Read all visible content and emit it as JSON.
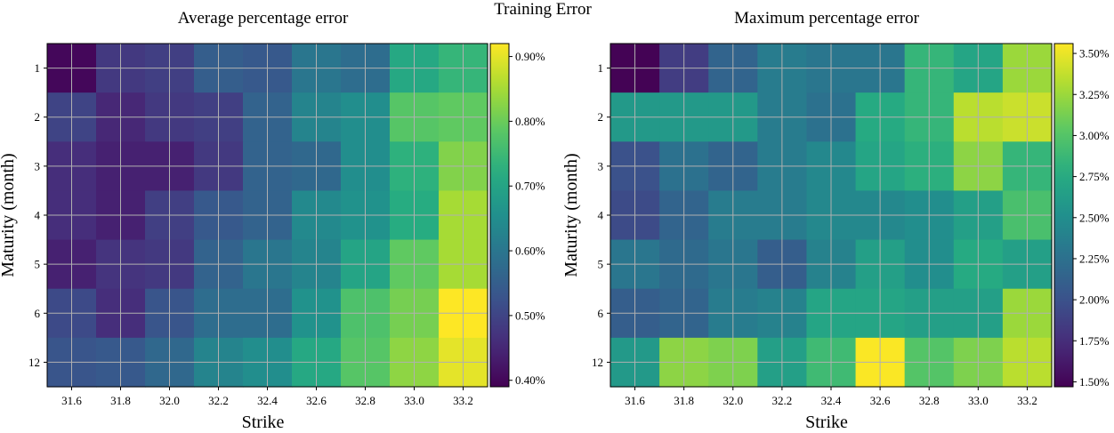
{
  "title": "Training Error",
  "chart_data": [
    {
      "type": "heatmap",
      "title": "Average percentage error",
      "xlabel": "Strike",
      "ylabel": "Maturity (month)",
      "x_categories": [
        "31.6",
        "31.8",
        "32.0",
        "32.2",
        "32.4",
        "32.6",
        "32.8",
        "33.0",
        "33.2"
      ],
      "y_categories": [
        "1",
        "2",
        "3",
        "4",
        "5",
        "6",
        "12"
      ],
      "values": [
        [
          0.4,
          0.48,
          0.49,
          0.55,
          0.54,
          0.6,
          0.58,
          0.71,
          0.74
        ],
        [
          0.5,
          0.45,
          0.48,
          0.49,
          0.56,
          0.63,
          0.65,
          0.78,
          0.79
        ],
        [
          0.46,
          0.44,
          0.44,
          0.48,
          0.56,
          0.57,
          0.65,
          0.73,
          0.82
        ],
        [
          0.46,
          0.44,
          0.49,
          0.54,
          0.56,
          0.64,
          0.66,
          0.72,
          0.85
        ],
        [
          0.44,
          0.47,
          0.48,
          0.56,
          0.6,
          0.63,
          0.7,
          0.79,
          0.85
        ],
        [
          0.51,
          0.46,
          0.53,
          0.58,
          0.58,
          0.66,
          0.77,
          0.81,
          0.92
        ],
        [
          0.53,
          0.54,
          0.57,
          0.63,
          0.65,
          0.71,
          0.78,
          0.83,
          0.9
        ]
      ],
      "colorbar": {
        "min": 0.39,
        "max": 0.92,
        "ticks": [
          0.4,
          0.5,
          0.6,
          0.7,
          0.8,
          0.9
        ],
        "tick_labels": [
          "0.40%",
          "0.50%",
          "0.60%",
          "0.70%",
          "0.80%",
          "0.90%"
        ]
      },
      "colormap": "viridis",
      "grid": true
    },
    {
      "type": "heatmap",
      "title": "Maximum percentage error",
      "xlabel": "Strike",
      "ylabel": "Maturity (month)",
      "x_categories": [
        "31.6",
        "31.8",
        "32.0",
        "32.2",
        "32.4",
        "32.6",
        "32.8",
        "33.0",
        "33.2"
      ],
      "y_categories": [
        "1",
        "2",
        "3",
        "4",
        "5",
        "6",
        "12"
      ],
      "values": [
        [
          1.48,
          1.85,
          2.15,
          2.35,
          2.3,
          2.3,
          2.85,
          2.7,
          3.25
        ],
        [
          2.6,
          2.6,
          2.6,
          2.35,
          2.25,
          2.75,
          2.85,
          3.35,
          3.4
        ],
        [
          2.0,
          2.25,
          2.15,
          2.35,
          2.45,
          2.7,
          2.8,
          3.2,
          2.85
        ],
        [
          1.95,
          2.15,
          2.35,
          2.35,
          2.45,
          2.45,
          2.5,
          2.65,
          2.95
        ],
        [
          2.3,
          2.2,
          2.3,
          2.1,
          2.4,
          2.65,
          2.5,
          2.75,
          2.65
        ],
        [
          2.1,
          2.15,
          2.35,
          2.4,
          2.7,
          2.7,
          2.65,
          2.65,
          3.25
        ],
        [
          2.6,
          3.2,
          3.15,
          2.65,
          2.9,
          3.55,
          3.0,
          3.15,
          3.35
        ]
      ],
      "colorbar": {
        "min": 1.47,
        "max": 3.56,
        "ticks": [
          1.5,
          1.75,
          2.0,
          2.25,
          2.5,
          2.75,
          3.0,
          3.25,
          3.5
        ],
        "tick_labels": [
          "1.50%",
          "1.75%",
          "2.00%",
          "2.25%",
          "2.50%",
          "2.75%",
          "3.00%",
          "3.25%",
          "3.50%"
        ]
      },
      "colormap": "viridis",
      "grid": true
    }
  ]
}
